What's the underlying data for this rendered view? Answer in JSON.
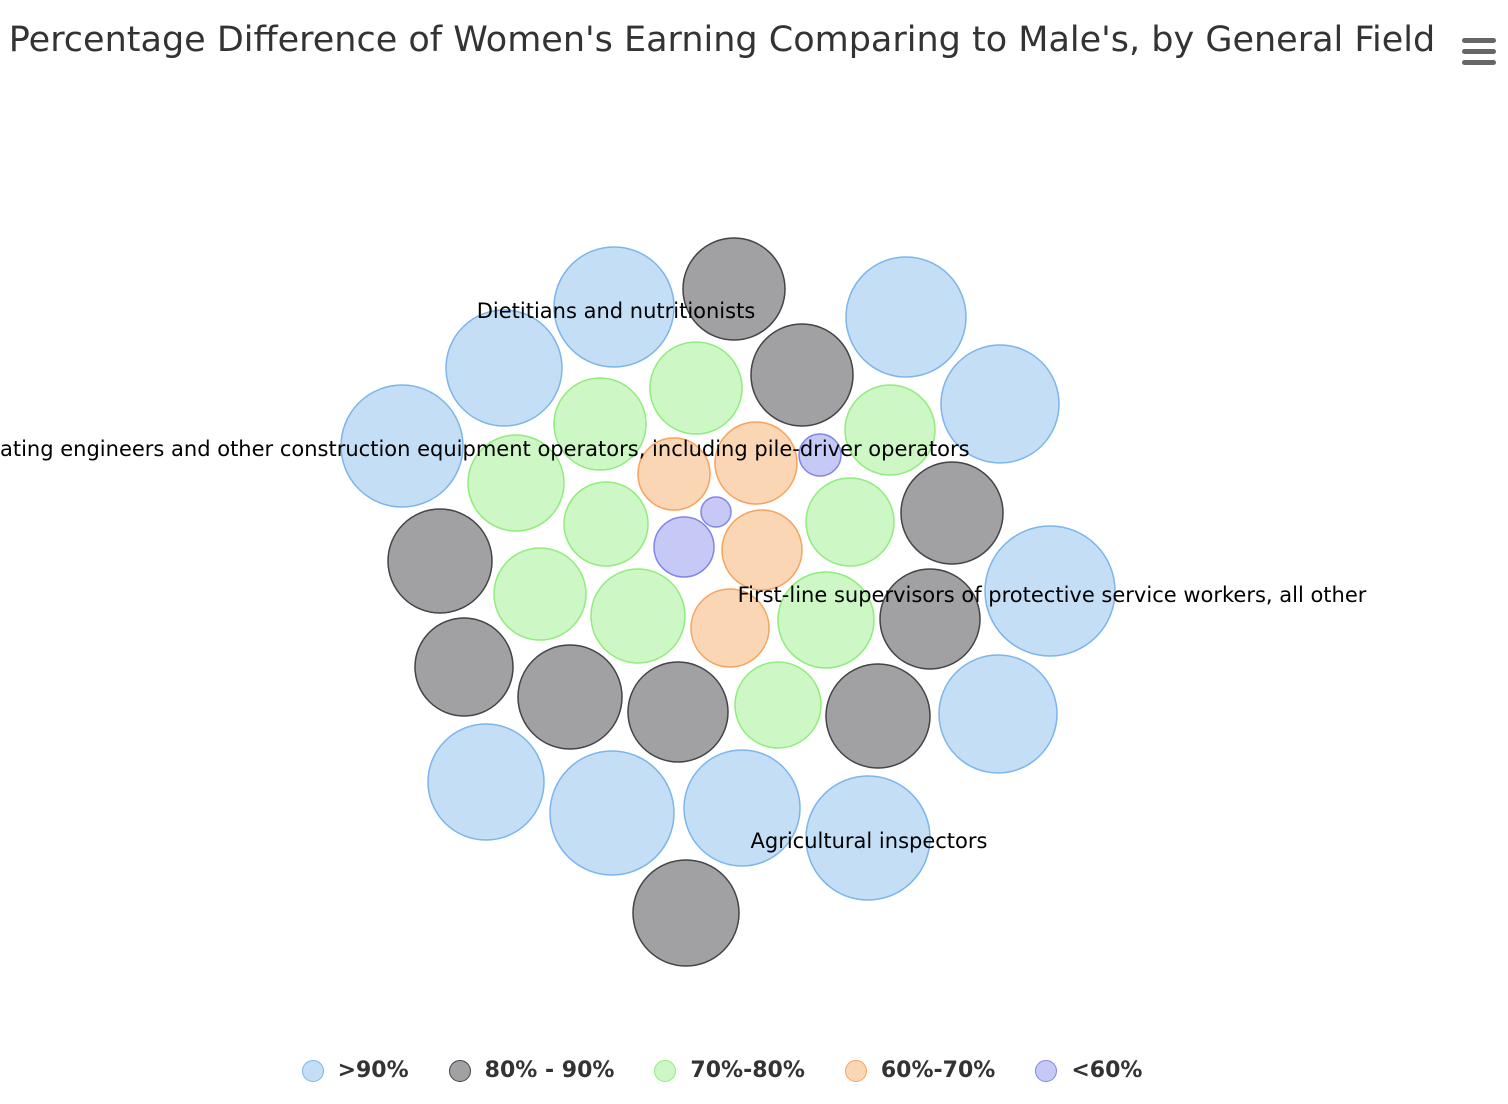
{
  "chart_data": {
    "type": "packed-bubble",
    "title": "Percentage Difference of Women's Earning Comparing to Male's, by General Field",
    "series": [
      {
        "name": ">90%",
        "color": "#7cb5ec"
      },
      {
        "name": "80% - 90%",
        "color": "#434348"
      },
      {
        "name": "70%-80%",
        "color": "#90ed7d"
      },
      {
        "name": "60%-70%",
        "color": "#f7a35c"
      },
      {
        "name": "<60%",
        "color": "#8085e9"
      }
    ],
    "data_labels": [
      "Dietitians and nutritionists",
      "ating engineers and other construction equipment operators, including pile-driver operators",
      "First-line supervisors of protective service workers, all other",
      "Agricultural inspectors"
    ],
    "legend_position": "bottom-center"
  },
  "menu": {
    "icon": "hamburger-menu-icon"
  }
}
